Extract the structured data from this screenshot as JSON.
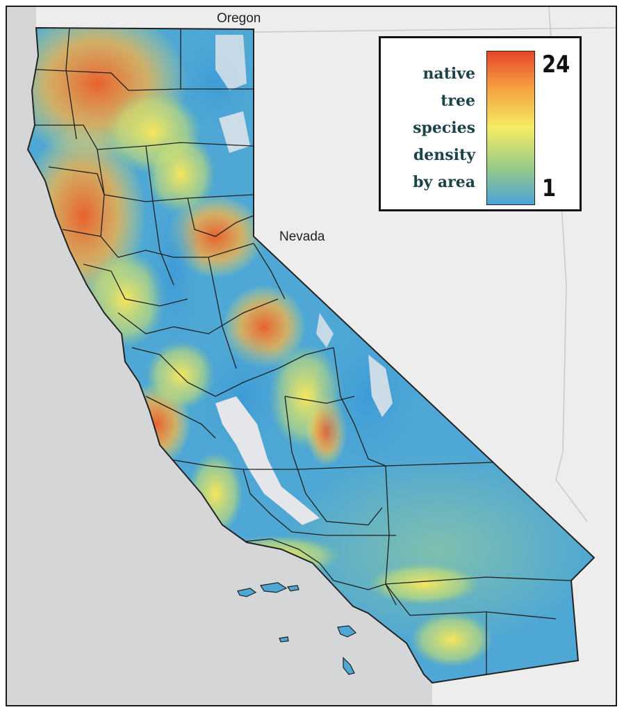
{
  "map": {
    "labels": {
      "oregon": "Oregon",
      "nevada": "Nevada"
    },
    "colors": {
      "ocean": "#d4d6d8",
      "land_outside": "#ededed",
      "state_border": "#222222",
      "county_line": "#1e1e1e",
      "valley_gray": "#e4e6ea"
    }
  },
  "legend": {
    "title_lines": [
      "native",
      "tree",
      "species",
      "density",
      "by area"
    ],
    "max_label": "24",
    "min_label": "1",
    "colors": [
      "#e8452a",
      "#f5a442",
      "#f4ec62",
      "#9ccc86",
      "#4aa3d6"
    ]
  }
}
